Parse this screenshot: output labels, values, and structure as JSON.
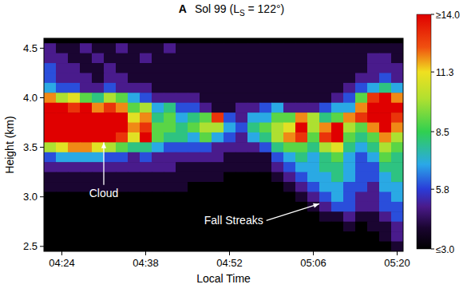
{
  "chart_data": {
    "type": "heatmap",
    "panel_label": "A",
    "title": [
      "Sol 99 (L",
      "S",
      " = 122°)"
    ],
    "x_label": "Local Time",
    "y_label": "Height (km)",
    "xlim": [
      261,
      321
    ],
    "ylim": [
      2.45,
      4.6
    ],
    "xticks": [
      {
        "value": 264,
        "label": "04:24"
      },
      {
        "value": 278,
        "label": "04:38"
      },
      {
        "value": 292,
        "label": "04:52"
      },
      {
        "value": 306,
        "label": "05:06"
      },
      {
        "value": 320,
        "label": "05:20"
      }
    ],
    "yticks": [
      2.5,
      {
        "value": 3,
        "label": "3.0"
      },
      3.5,
      {
        "value": 4,
        "label": "4.0"
      },
      4.5
    ],
    "x": [
      262,
      264,
      266,
      268,
      270,
      272,
      274,
      276,
      278,
      280,
      282,
      284,
      286,
      288,
      290,
      292,
      294,
      296,
      298,
      300,
      302,
      304,
      306,
      308,
      310,
      312,
      314,
      316,
      318,
      320
    ],
    "y": [
      4.5,
      4.4,
      4.3,
      4.2,
      4.1,
      4.0,
      3.9,
      3.8,
      3.7,
      3.6,
      3.5,
      3.4,
      3.3,
      3.2,
      3.1,
      3.0,
      2.9,
      2.8,
      2.7,
      2.6,
      2.5
    ],
    "values": [
      [
        5,
        4,
        4,
        5,
        4,
        4,
        5,
        4,
        4,
        4,
        5,
        4,
        4,
        4,
        4,
        4,
        4,
        4,
        4,
        4,
        4,
        4,
        4,
        4,
        4,
        4,
        4,
        4,
        4,
        4
      ],
      [
        5,
        5,
        4,
        4,
        5,
        4,
        4,
        4,
        5,
        4,
        4,
        4,
        4,
        4,
        4,
        4,
        4,
        4,
        4,
        4,
        4,
        4,
        4,
        4,
        4,
        4,
        4,
        5,
        5,
        4
      ],
      [
        6,
        5,
        5,
        4,
        4,
        5,
        4,
        4,
        4,
        4,
        4,
        4,
        4,
        4,
        4,
        4,
        4,
        4,
        4,
        4,
        4,
        4,
        4,
        4,
        4,
        4,
        4,
        5,
        5,
        5
      ],
      [
        6,
        5,
        5,
        5,
        4,
        5,
        5,
        4,
        4,
        4,
        4,
        4,
        4,
        4,
        4,
        4,
        4,
        4,
        4,
        4,
        4,
        4,
        4,
        4,
        4,
        4,
        5,
        5,
        6,
        5
      ],
      [
        7,
        6,
        6,
        5,
        5,
        6,
        5,
        5,
        5,
        4,
        4,
        4,
        4,
        4,
        4,
        4,
        4,
        4,
        4,
        4,
        4,
        4,
        4,
        4,
        4,
        5,
        6,
        7,
        8,
        7
      ],
      [
        12,
        10,
        11,
        9,
        8,
        10,
        9,
        7,
        6,
        5,
        5,
        5,
        5,
        4,
        4,
        4,
        4,
        4,
        4,
        4,
        4,
        4,
        4,
        4,
        5,
        6,
        9,
        13,
        14,
        12
      ],
      [
        14,
        14,
        13,
        14,
        12,
        13,
        12,
        9,
        10,
        7,
        8,
        6,
        6,
        5,
        4,
        4,
        5,
        5,
        6,
        7,
        5,
        5,
        5,
        6,
        7,
        7,
        12,
        14,
        14,
        14
      ],
      [
        14,
        14,
        14,
        14,
        14,
        14,
        14,
        11,
        12,
        8,
        9,
        7,
        8,
        9,
        13,
        6,
        5,
        7,
        7,
        9,
        9,
        12,
        10,
        8,
        9,
        12,
        13,
        14,
        14,
        13
      ],
      [
        14,
        14,
        14,
        14,
        14,
        14,
        14,
        12,
        13,
        9,
        9,
        8,
        9,
        10,
        10,
        7,
        6,
        8,
        9,
        10,
        11,
        14,
        10,
        12,
        14,
        10,
        9,
        12,
        14,
        12
      ],
      [
        14,
        14,
        14,
        14,
        14,
        14,
        13,
        11,
        14,
        9,
        8,
        8,
        7,
        9,
        7,
        6,
        5,
        7,
        8,
        10,
        12,
        13,
        9,
        13,
        14,
        9,
        8,
        9,
        12,
        10
      ],
      [
        10,
        11,
        12,
        12,
        11,
        10,
        9,
        8,
        8,
        7,
        6,
        6,
        6,
        6,
        5,
        5,
        5,
        5,
        6,
        8,
        9,
        9,
        8,
        10,
        11,
        8,
        7,
        8,
        10,
        9
      ],
      [
        6,
        7,
        7,
        7,
        7,
        6,
        6,
        5,
        6,
        5,
        5,
        5,
        5,
        5,
        5,
        4,
        4,
        4,
        4,
        6,
        7,
        8,
        7,
        8,
        9,
        7,
        6,
        7,
        9,
        8
      ],
      [
        5,
        5,
        5,
        5,
        5,
        5,
        5,
        5,
        5,
        5,
        5,
        4,
        4,
        4,
        4,
        4,
        4,
        4,
        4,
        5,
        6,
        7,
        7,
        8,
        8,
        7,
        6,
        6,
        8,
        8
      ],
      [
        4,
        4,
        4,
        4,
        4,
        4,
        4,
        4,
        4,
        4,
        4,
        4,
        4,
        4,
        4,
        3,
        3,
        3,
        3,
        4,
        5,
        6,
        7,
        7,
        8,
        7,
        6,
        6,
        7,
        8
      ],
      [
        4,
        4,
        4,
        4,
        4,
        4,
        4,
        4,
        4,
        4,
        4,
        4,
        3,
        3,
        3,
        3,
        3,
        3,
        3,
        3,
        4,
        5,
        6,
        7,
        7,
        6,
        6,
        5,
        7,
        7
      ],
      [
        3,
        3,
        3,
        3,
        3,
        3,
        3,
        3,
        3,
        3,
        3,
        3,
        3,
        3,
        3,
        3,
        3,
        3,
        3,
        3,
        3,
        4,
        5,
        6,
        7,
        6,
        5,
        5,
        6,
        7
      ],
      [
        3,
        3,
        3,
        3,
        3,
        3,
        3,
        3,
        3,
        3,
        3,
        3,
        3,
        3,
        3,
        3,
        3,
        3,
        3,
        3,
        3,
        3,
        4,
        5,
        6,
        6,
        5,
        5,
        6,
        6
      ],
      [
        3,
        3,
        3,
        3,
        3,
        3,
        3,
        3,
        3,
        3,
        3,
        3,
        3,
        3,
        3,
        3,
        3,
        3,
        3,
        3,
        3,
        3,
        3,
        4,
        4,
        5,
        4,
        4,
        5,
        6
      ],
      [
        3,
        3,
        3,
        3,
        3,
        3,
        3,
        3,
        3,
        3,
        3,
        3,
        3,
        3,
        3,
        3,
        3,
        3,
        3,
        3,
        3,
        3,
        3,
        3,
        3,
        4,
        3,
        4,
        4,
        5
      ],
      [
        3,
        3,
        3,
        3,
        3,
        3,
        3,
        3,
        3,
        3,
        3,
        3,
        3,
        3,
        3,
        3,
        3,
        3,
        3,
        3,
        3,
        3,
        3,
        3,
        3,
        3,
        3,
        3,
        4,
        5
      ],
      [
        3,
        3,
        3,
        3,
        3,
        3,
        3,
        3,
        3,
        3,
        3,
        3,
        3,
        3,
        3,
        3,
        3,
        3,
        3,
        3,
        3,
        3,
        3,
        3,
        3,
        3,
        3,
        3,
        3,
        4
      ]
    ],
    "colorbar": {
      "range": [
        3,
        14
      ],
      "ticks": [
        {
          "value": 3,
          "label": "≤3.0"
        },
        {
          "value": 5.8,
          "label": "5.8"
        },
        {
          "value": 8.5,
          "label": "8.5"
        },
        {
          "value": 11.3,
          "label": "11.3"
        },
        {
          "value": 14,
          "label": "≥14.0"
        }
      ]
    },
    "annotations": [
      {
        "text": "Cloud",
        "x": 271,
        "y": 3.0,
        "arrow_x": 271,
        "arrow_y": 3.55
      },
      {
        "text": "Fall Streaks",
        "x": 292.7,
        "y": 2.72,
        "arrow_x": 307,
        "arrow_y": 2.93
      }
    ]
  }
}
